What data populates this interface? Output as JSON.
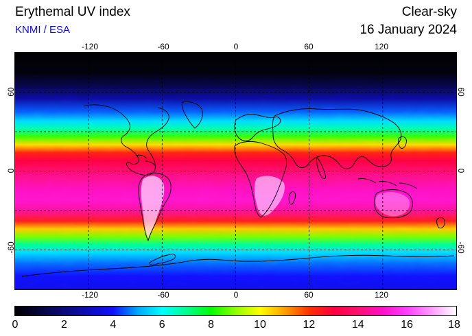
{
  "header": {
    "title": "Erythemal UV index",
    "credit": "KNMI / ESA",
    "condition": "Clear-sky",
    "date": "16 January 2024"
  },
  "map": {
    "lon_ticks": [
      "-120",
      "-60",
      "0",
      "60",
      "120"
    ],
    "lat_ticks": [
      "60",
      "0",
      "-60"
    ],
    "lon_values": [
      -120,
      -60,
      0,
      60,
      120
    ],
    "lat_values": [
      60,
      0,
      -60
    ],
    "lon_range": [
      -180,
      180
    ],
    "lat_range": [
      -90,
      90
    ],
    "graticule": true
  },
  "colorbar": {
    "ticks": [
      "0",
      "2",
      "4",
      "6",
      "8",
      "10",
      "12",
      "14",
      "16",
      "18"
    ],
    "range": [
      0,
      18
    ],
    "stops": [
      {
        "v": 0,
        "c": "#000000"
      },
      {
        "v": 2,
        "c": "#0a0a78"
      },
      {
        "v": 4,
        "c": "#1010ff"
      },
      {
        "v": 5,
        "c": "#00a8ff"
      },
      {
        "v": 6,
        "c": "#00ffff"
      },
      {
        "v": 7,
        "c": "#00ff90"
      },
      {
        "v": 8,
        "c": "#00ff00"
      },
      {
        "v": 9,
        "c": "#90ff00"
      },
      {
        "v": 10,
        "c": "#ffff00"
      },
      {
        "v": 11,
        "c": "#ffa000"
      },
      {
        "v": 12,
        "c": "#ff3000"
      },
      {
        "v": 13,
        "c": "#ff0040"
      },
      {
        "v": 14,
        "c": "#ff1070"
      },
      {
        "v": 15,
        "c": "#ff10c8"
      },
      {
        "v": 16,
        "c": "#ff40ff"
      },
      {
        "v": 17,
        "c": "#ff9cff"
      },
      {
        "v": 18,
        "c": "#ffffff"
      }
    ]
  },
  "uv_profile": {
    "lat": [
      90,
      75,
      65,
      55,
      45,
      38,
      32,
      26,
      20,
      14,
      8,
      2,
      -6,
      -14,
      -22,
      -30,
      -38,
      -44,
      -50,
      -56,
      -62,
      -70,
      -80,
      -90
    ],
    "uv": [
      0,
      0.2,
      1.2,
      2.6,
      4.5,
      5.6,
      6.8,
      8.4,
      10.4,
      12.3,
      13.0,
      13.7,
      14.4,
      14.9,
      15.1,
      14.5,
      12.4,
      10.6,
      8.8,
      7.0,
      5.6,
      4.6,
      4.0,
      3.7
    ]
  }
}
